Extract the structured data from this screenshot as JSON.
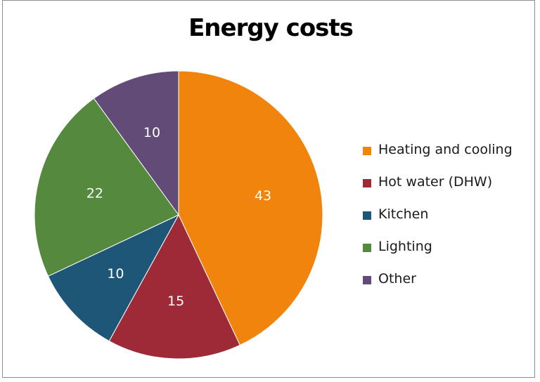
{
  "chart_data": {
    "type": "pie",
    "title": "Energy costs",
    "categories": [
      "Heating and cooling",
      "Hot water (DHW)",
      "Kitchen",
      "Lighting",
      "Other"
    ],
    "values": [
      43,
      15,
      10,
      22,
      10
    ],
    "colors": [
      "#f0840c",
      "#9e2a38",
      "#1d5677",
      "#54893e",
      "#634b78"
    ],
    "legend_position": "right",
    "data_labels": true
  }
}
